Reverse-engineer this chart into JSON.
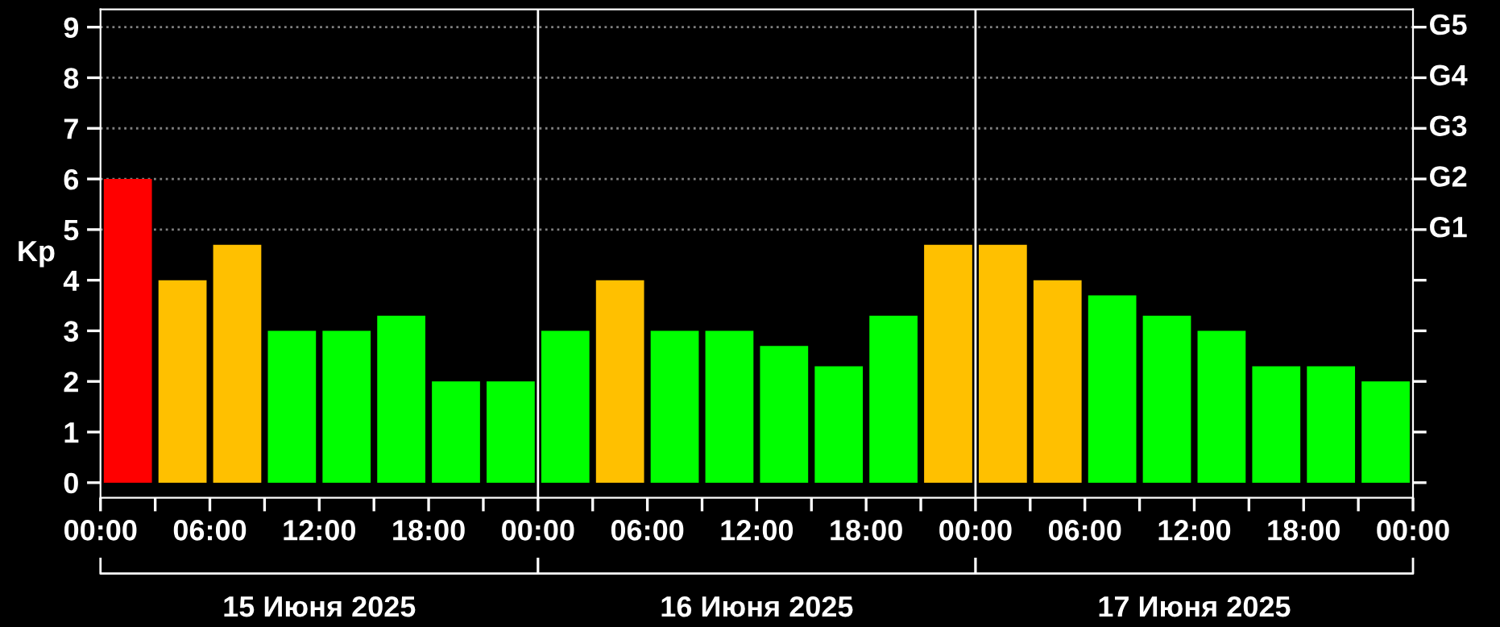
{
  "chart_data": {
    "type": "bar",
    "ylabel": "Kp",
    "x": [
      "2025-06-15T01:30",
      "2025-06-15T04:30",
      "2025-06-15T07:30",
      "2025-06-15T10:30",
      "2025-06-15T13:30",
      "2025-06-15T16:30",
      "2025-06-15T19:30",
      "2025-06-15T22:30",
      "2025-06-16T01:30",
      "2025-06-16T04:30",
      "2025-06-16T07:30",
      "2025-06-16T10:30",
      "2025-06-16T13:30",
      "2025-06-16T16:30",
      "2025-06-16T19:30",
      "2025-06-16T22:30",
      "2025-06-17T01:30",
      "2025-06-17T04:30",
      "2025-06-17T07:30",
      "2025-06-17T10:30",
      "2025-06-17T13:30",
      "2025-06-17T16:30",
      "2025-06-17T19:30",
      "2025-06-17T22:30"
    ],
    "values": [
      6,
      4,
      4.7,
      3,
      3,
      3.3,
      2,
      2,
      3,
      4,
      3,
      3,
      2.7,
      2.3,
      3.3,
      4.7,
      4.7,
      4,
      3.7,
      3.3,
      3,
      2.3,
      2.3,
      2
    ],
    "colors": [
      "#ff0000",
      "#ffc000",
      "#ffc000",
      "#00ff00",
      "#00ff00",
      "#00ff00",
      "#00ff00",
      "#00ff00",
      "#00ff00",
      "#ffc000",
      "#00ff00",
      "#00ff00",
      "#00ff00",
      "#00ff00",
      "#00ff00",
      "#ffc000",
      "#ffc000",
      "#ffc000",
      "#00ff00",
      "#00ff00",
      "#00ff00",
      "#00ff00",
      "#00ff00",
      "#00ff00"
    ],
    "xlim": [
      "2025-06-15T00:00",
      "2025-06-18T00:00"
    ],
    "xticks": [
      {
        "value": "2025-06-15T00:00",
        "label": "00:00"
      },
      {
        "value": "2025-06-15T03:00",
        "label": null
      },
      {
        "value": "2025-06-15T06:00",
        "label": "06:00"
      },
      {
        "value": "2025-06-15T09:00",
        "label": null
      },
      {
        "value": "2025-06-15T12:00",
        "label": "12:00"
      },
      {
        "value": "2025-06-15T15:00",
        "label": null
      },
      {
        "value": "2025-06-15T18:00",
        "label": "18:00"
      },
      {
        "value": "2025-06-15T21:00",
        "label": null
      },
      {
        "value": "2025-06-16T00:00",
        "label": "00:00"
      },
      {
        "value": "2025-06-16T03:00",
        "label": null
      },
      {
        "value": "2025-06-16T06:00",
        "label": "06:00"
      },
      {
        "value": "2025-06-16T09:00",
        "label": null
      },
      {
        "value": "2025-06-16T12:00",
        "label": "12:00"
      },
      {
        "value": "2025-06-16T15:00",
        "label": null
      },
      {
        "value": "2025-06-16T18:00",
        "label": "18:00"
      },
      {
        "value": "2025-06-16T21:00",
        "label": null
      },
      {
        "value": "2025-06-17T00:00",
        "label": "00:00"
      },
      {
        "value": "2025-06-17T03:00",
        "label": null
      },
      {
        "value": "2025-06-17T06:00",
        "label": "06:00"
      },
      {
        "value": "2025-06-17T09:00",
        "label": null
      },
      {
        "value": "2025-06-17T12:00",
        "label": "12:00"
      },
      {
        "value": "2025-06-17T15:00",
        "label": null
      },
      {
        "value": "2025-06-17T18:00",
        "label": "18:00"
      },
      {
        "value": "2025-06-17T21:00",
        "label": null
      },
      {
        "value": "2025-06-18T00:00",
        "label": "00:00"
      }
    ],
    "ylim": [
      -0.3,
      9.35
    ],
    "yticks": [
      0,
      1,
      2,
      3,
      4,
      5,
      6,
      7,
      8,
      9
    ],
    "ref_lines": [
      {
        "axis": "x",
        "value": "2025-06-16T00:00",
        "color": "#ffffff",
        "line_style": "solid"
      },
      {
        "axis": "x",
        "value": "2025-06-17T00:00",
        "color": "#ffffff",
        "line_style": "solid"
      },
      {
        "axis": "y",
        "value": 5,
        "label": "G1",
        "color": "#808080",
        "line_style": "dotted"
      },
      {
        "axis": "y",
        "value": 6,
        "label": "G2",
        "color": "#808080",
        "line_style": "dotted"
      },
      {
        "axis": "y",
        "value": 7,
        "label": "G3",
        "color": "#808080",
        "line_style": "dotted"
      },
      {
        "axis": "y",
        "value": 8,
        "label": "G4",
        "color": "#808080",
        "line_style": "dotted"
      },
      {
        "axis": "y",
        "value": 9,
        "label": "G5",
        "color": "#808080",
        "line_style": "dotted"
      }
    ],
    "annotations": [
      "15 Июня 2025",
      "16 Июня 2025",
      "17 Июня 2025"
    ]
  }
}
